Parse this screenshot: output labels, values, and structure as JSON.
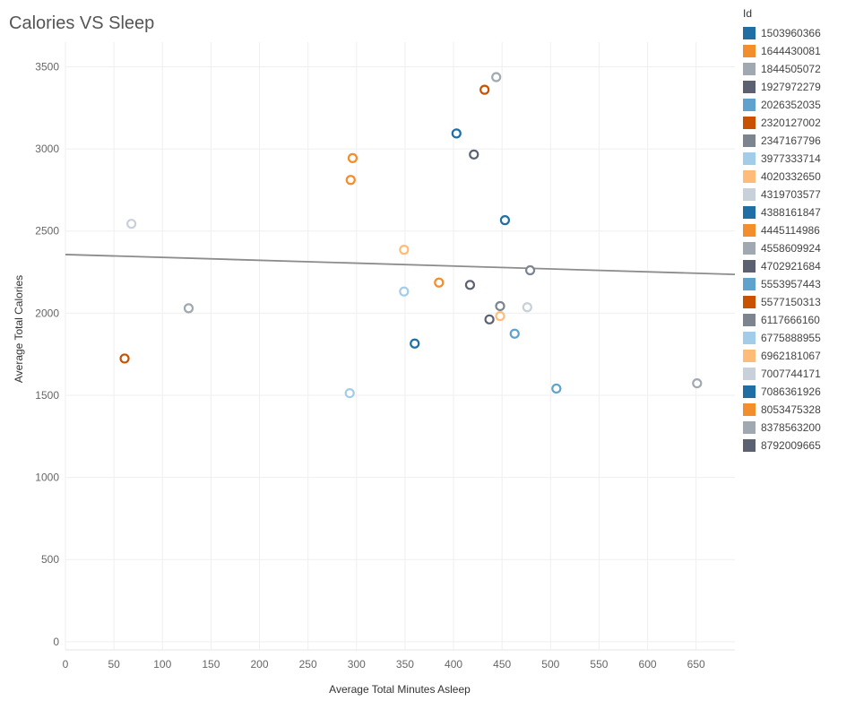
{
  "chart_data": {
    "type": "scatter",
    "title": "Calories VS Sleep",
    "xlabel": "Average Total Minutes Asleep",
    "ylabel": "Average Total Calories",
    "xlim": [
      0,
      690
    ],
    "ylim": [
      -50,
      3650
    ],
    "xticks": [
      0,
      50,
      100,
      150,
      200,
      250,
      300,
      350,
      400,
      450,
      500,
      550,
      600,
      650
    ],
    "yticks": [
      0,
      500,
      1000,
      1500,
      2000,
      2500,
      3000,
      3500
    ],
    "grid": true,
    "legend_title": "Id",
    "legend_position": "right",
    "trend_line": {
      "x": [
        0,
        690
      ],
      "y": [
        2357,
        2236
      ],
      "color": "#8c8c8c"
    },
    "series": [
      {
        "name": "1503960366",
        "color": "#1f6fa5",
        "points": []
      },
      {
        "name": "1644430081",
        "color": "#f28e2b",
        "points": []
      },
      {
        "name": "1844505072",
        "color": "#a0a8b1",
        "points": [
          [
            127,
            2030
          ]
        ]
      },
      {
        "name": "1927972279",
        "color": "#5b6170",
        "points": []
      },
      {
        "name": "2026352035",
        "color": "#5fa2ce",
        "points": [
          [
            506,
            1541
          ]
        ]
      },
      {
        "name": "2320127002",
        "color": "#c85200",
        "points": [
          [
            61,
            1724
          ]
        ]
      },
      {
        "name": "2347167796",
        "color": "#7b848f",
        "points": [
          [
            448,
            2043
          ]
        ]
      },
      {
        "name": "3977333714",
        "color": "#a3cce9",
        "points": [
          [
            293,
            1513
          ]
        ]
      },
      {
        "name": "4020332650",
        "color": "#ffbc79",
        "points": [
          [
            349,
            2386
          ]
        ]
      },
      {
        "name": "4319703577",
        "color": "#c8d0d9",
        "points": [
          [
            68,
            2544
          ]
        ]
      },
      {
        "name": "4388161847",
        "color": "#1f6fa5",
        "points": [
          [
            403,
            3094
          ],
          [
            453,
            2566
          ],
          [
            360,
            1815
          ]
        ]
      },
      {
        "name": "4445114986",
        "color": "#f28e2b",
        "points": [
          [
            294,
            2811
          ],
          [
            296,
            2944
          ],
          [
            385,
            2186
          ]
        ]
      },
      {
        "name": "4558609924",
        "color": "#a0a8b1",
        "points": [
          [
            444,
            3437
          ],
          [
            651,
            1573
          ]
        ]
      },
      {
        "name": "4702921684",
        "color": "#5b6170",
        "points": [
          [
            421,
            2966
          ],
          [
            417,
            2172
          ],
          [
            437,
            1962
          ]
        ]
      },
      {
        "name": "5553957443",
        "color": "#5fa2ce",
        "points": [
          [
            463,
            1875
          ]
        ]
      },
      {
        "name": "5577150313",
        "color": "#c85200",
        "points": [
          [
            432,
            3360
          ]
        ]
      },
      {
        "name": "6117666160",
        "color": "#7b848f",
        "points": [
          [
            479,
            2261
          ]
        ]
      },
      {
        "name": "6775888955",
        "color": "#a3cce9",
        "points": [
          [
            349,
            2132
          ]
        ]
      },
      {
        "name": "6962181067",
        "color": "#ffbc79",
        "points": [
          [
            448,
            1982
          ]
        ]
      },
      {
        "name": "7007744171",
        "color": "#c8d0d9",
        "points": [
          [
            476,
            2036
          ]
        ]
      },
      {
        "name": "7086361926",
        "color": "#1f6fa5",
        "points": []
      },
      {
        "name": "8053475328",
        "color": "#f28e2b",
        "points": []
      },
      {
        "name": "8378563200",
        "color": "#a0a8b1",
        "points": []
      },
      {
        "name": "8792009665",
        "color": "#5b6170",
        "points": []
      }
    ]
  }
}
